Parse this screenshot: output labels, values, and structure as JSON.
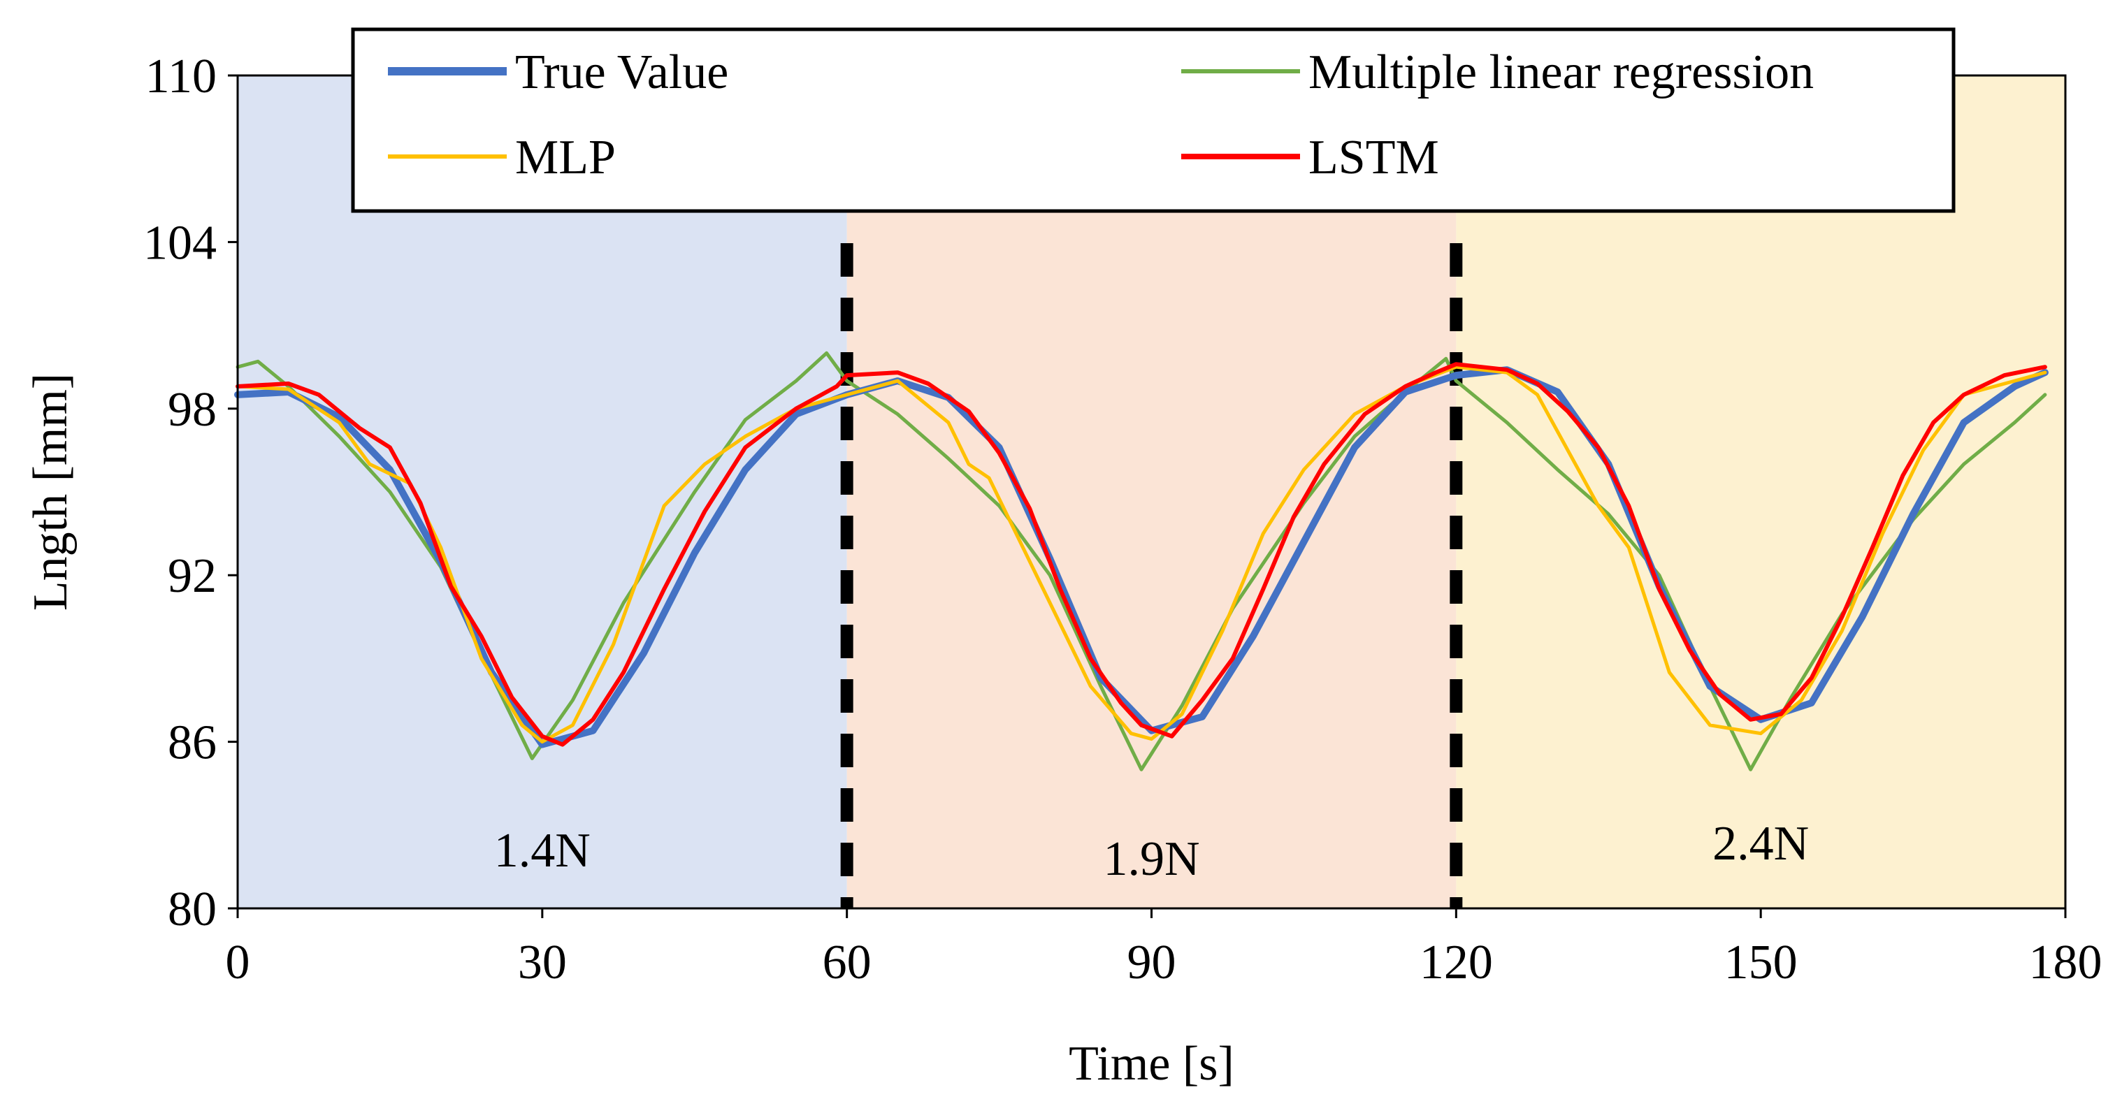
{
  "chart_data": {
    "type": "line",
    "xlabel": "Time [s]",
    "ylabel": "Lngth [mm]",
    "xlim": [
      0,
      180
    ],
    "ylim": [
      80,
      110
    ],
    "x_ticks": [
      0,
      30,
      60,
      90,
      120,
      150,
      180
    ],
    "y_ticks": [
      80,
      86,
      92,
      98,
      104,
      110
    ],
    "grid": false,
    "regions": [
      {
        "x_from": 0,
        "x_to": 60,
        "label": "1.4N",
        "color": "#dbe3f3"
      },
      {
        "x_from": 60,
        "x_to": 120,
        "label": "1.9N",
        "color": "#fbe4d6"
      },
      {
        "x_from": 120,
        "x_to": 180,
        "label": "2.4N",
        "color": "#fdf1d0"
      }
    ],
    "boundaries": [
      60,
      120
    ],
    "legend_position": "top",
    "series": [
      {
        "name": "True Value",
        "color": "#4472c4",
        "points": [
          [
            0,
            98.5
          ],
          [
            5,
            98.6
          ],
          [
            10,
            97.7
          ],
          [
            15,
            95.8
          ],
          [
            20,
            92.5
          ],
          [
            25,
            88.5
          ],
          [
            30,
            85.9
          ],
          [
            35,
            86.4
          ],
          [
            40,
            89.2
          ],
          [
            45,
            92.8
          ],
          [
            50,
            95.8
          ],
          [
            55,
            97.8
          ],
          [
            60,
            98.5
          ],
          [
            65,
            99.0
          ],
          [
            70,
            98.4
          ],
          [
            75,
            96.6
          ],
          [
            80,
            92.6
          ],
          [
            85,
            88.3
          ],
          [
            90,
            86.4
          ],
          [
            95,
            86.9
          ],
          [
            100,
            89.8
          ],
          [
            105,
            93.2
          ],
          [
            110,
            96.6
          ],
          [
            115,
            98.6
          ],
          [
            120,
            99.2
          ],
          [
            125,
            99.4
          ],
          [
            130,
            98.6
          ],
          [
            135,
            96.0
          ],
          [
            140,
            91.6
          ],
          [
            145,
            88.0
          ],
          [
            150,
            86.8
          ],
          [
            155,
            87.4
          ],
          [
            160,
            90.5
          ],
          [
            165,
            94.2
          ],
          [
            170,
            97.5
          ],
          [
            175,
            98.8
          ],
          [
            178,
            99.3
          ]
        ]
      },
      {
        "name": "Multiple linear regression",
        "color": "#70ad47",
        "points": [
          [
            0,
            99.5
          ],
          [
            2,
            99.7
          ],
          [
            5,
            98.8
          ],
          [
            10,
            97.0
          ],
          [
            15,
            95.0
          ],
          [
            20,
            92.3
          ],
          [
            25,
            88.4
          ],
          [
            29,
            85.4
          ],
          [
            33,
            87.5
          ],
          [
            38,
            91.0
          ],
          [
            45,
            95.0
          ],
          [
            50,
            97.6
          ],
          [
            55,
            99.0
          ],
          [
            58,
            100.0
          ],
          [
            60,
            99.0
          ],
          [
            65,
            97.8
          ],
          [
            70,
            96.2
          ],
          [
            75,
            94.5
          ],
          [
            80,
            92.0
          ],
          [
            85,
            88.0
          ],
          [
            89,
            85.0
          ],
          [
            93,
            87.3
          ],
          [
            98,
            90.8
          ],
          [
            105,
            94.6
          ],
          [
            110,
            97.0
          ],
          [
            115,
            98.6
          ],
          [
            119,
            99.8
          ],
          [
            120,
            99.0
          ],
          [
            125,
            97.5
          ],
          [
            130,
            95.8
          ],
          [
            135,
            94.2
          ],
          [
            140,
            92.0
          ],
          [
            145,
            88.0
          ],
          [
            149,
            85.0
          ],
          [
            153,
            87.6
          ],
          [
            158,
            90.6
          ],
          [
            165,
            94.0
          ],
          [
            170,
            96.0
          ],
          [
            175,
            97.5
          ],
          [
            178,
            98.5
          ]
        ]
      },
      {
        "name": "MLP",
        "color": "#ffc000",
        "points": [
          [
            0,
            98.8
          ],
          [
            5,
            98.7
          ],
          [
            10,
            97.5
          ],
          [
            13,
            96.0
          ],
          [
            17,
            95.3
          ],
          [
            20,
            93.0
          ],
          [
            24,
            89.0
          ],
          [
            28,
            86.6
          ],
          [
            30,
            86.0
          ],
          [
            33,
            86.6
          ],
          [
            37,
            89.5
          ],
          [
            42,
            94.5
          ],
          [
            46,
            96.0
          ],
          [
            50,
            97.0
          ],
          [
            55,
            98.0
          ],
          [
            60,
            98.5
          ],
          [
            65,
            99.0
          ],
          [
            70,
            97.5
          ],
          [
            72,
            96.0
          ],
          [
            74,
            95.5
          ],
          [
            76,
            94.0
          ],
          [
            80,
            91.0
          ],
          [
            84,
            88.0
          ],
          [
            88,
            86.3
          ],
          [
            90,
            86.1
          ],
          [
            93,
            87.0
          ],
          [
            97,
            90.0
          ],
          [
            101,
            93.5
          ],
          [
            105,
            95.8
          ],
          [
            110,
            97.8
          ],
          [
            115,
            98.8
          ],
          [
            120,
            99.5
          ],
          [
            125,
            99.3
          ],
          [
            128,
            98.5
          ],
          [
            131,
            96.5
          ],
          [
            134,
            94.5
          ],
          [
            137,
            93.0
          ],
          [
            141,
            88.5
          ],
          [
            145,
            86.6
          ],
          [
            150,
            86.3
          ],
          [
            154,
            87.5
          ],
          [
            158,
            90.0
          ],
          [
            162,
            93.5
          ],
          [
            166,
            96.5
          ],
          [
            170,
            98.5
          ],
          [
            175,
            99.0
          ],
          [
            178,
            99.3
          ]
        ]
      },
      {
        "name": "LSTM",
        "color": "#ff0000",
        "points": [
          [
            0,
            98.8
          ],
          [
            5,
            98.9
          ],
          [
            8,
            98.5
          ],
          [
            12,
            97.3
          ],
          [
            15,
            96.6
          ],
          [
            18,
            94.6
          ],
          [
            21,
            91.6
          ],
          [
            24,
            89.8
          ],
          [
            27,
            87.6
          ],
          [
            30,
            86.2
          ],
          [
            32,
            85.9
          ],
          [
            35,
            86.8
          ],
          [
            38,
            88.5
          ],
          [
            42,
            91.5
          ],
          [
            46,
            94.3
          ],
          [
            50,
            96.6
          ],
          [
            55,
            98.0
          ],
          [
            59,
            98.8
          ],
          [
            60,
            99.2
          ],
          [
            65,
            99.3
          ],
          [
            68,
            98.9
          ],
          [
            72,
            97.9
          ],
          [
            75,
            96.4
          ],
          [
            78,
            94.4
          ],
          [
            81,
            91.5
          ],
          [
            84,
            89.0
          ],
          [
            87,
            87.4
          ],
          [
            89,
            86.6
          ],
          [
            92,
            86.2
          ],
          [
            95,
            87.5
          ],
          [
            98,
            89.0
          ],
          [
            101,
            91.5
          ],
          [
            104,
            94.1
          ],
          [
            107,
            96.0
          ],
          [
            111,
            97.8
          ],
          [
            115,
            98.8
          ],
          [
            118,
            99.3
          ],
          [
            120,
            99.6
          ],
          [
            125,
            99.4
          ],
          [
            128,
            98.9
          ],
          [
            131,
            97.9
          ],
          [
            134,
            96.6
          ],
          [
            137,
            94.5
          ],
          [
            140,
            91.5
          ],
          [
            143,
            89.3
          ],
          [
            146,
            87.7
          ],
          [
            149,
            86.8
          ],
          [
            152,
            87.0
          ],
          [
            155,
            88.3
          ],
          [
            158,
            90.5
          ],
          [
            161,
            93.0
          ],
          [
            164,
            95.6
          ],
          [
            167,
            97.5
          ],
          [
            170,
            98.5
          ],
          [
            174,
            99.2
          ],
          [
            178,
            99.5
          ]
        ]
      }
    ]
  }
}
